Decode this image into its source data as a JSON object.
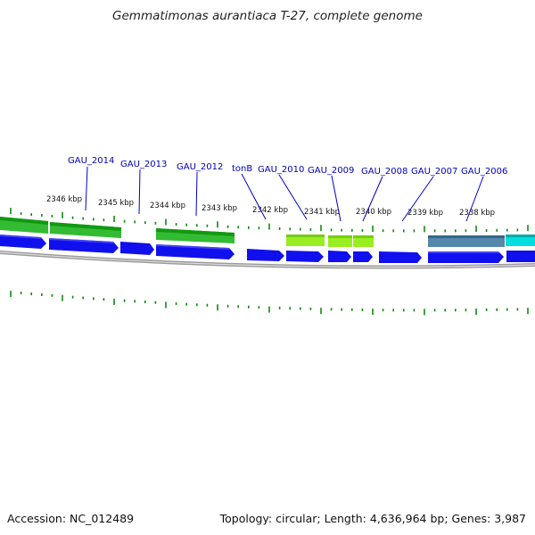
{
  "title": "Gemmatimonas aurantiaca T-27, complete genome",
  "footer": {
    "accession": "Accession: NC_012489",
    "topology": "Topology: circular; Length: 4,636,964 bp; Genes: 3,987"
  },
  "colors": {
    "cds_arrow": "#1010ee",
    "green_feature": "#33bb33",
    "lime_feature": "#99ee22",
    "steel_feature": "#5588aa",
    "cyan_feature": "#00dddd",
    "tick": "#118811",
    "backbone": "#888888",
    "label_text": "#0000bb"
  },
  "ruler_labels": [
    "2346 kbp",
    "2345 kbp",
    "2344 kbp",
    "2343 kbp",
    "2342 kbp",
    "2341 kbp",
    "2340 kbp",
    "2339 kbp",
    "2338 kbp"
  ],
  "gene_labels": [
    "GAU_2014",
    "GAU_2013",
    "GAU_2012",
    "tonB",
    "GAU_2010",
    "GAU_2009",
    "GAU_2008",
    "GAU_2007",
    "GAU_2006"
  ]
}
